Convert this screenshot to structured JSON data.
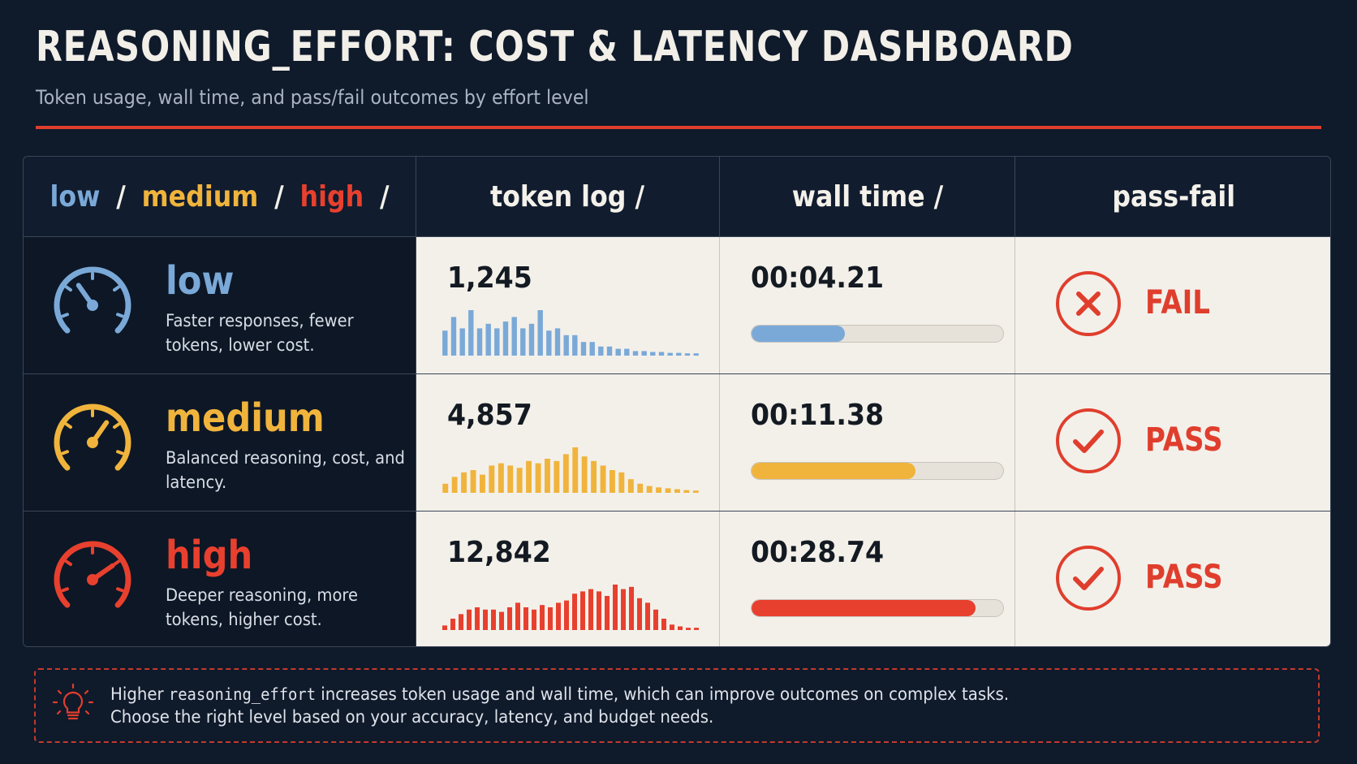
{
  "header": {
    "title": "REASONING_EFFORT: COST & LATENCY DASHBOARD",
    "subtitle": "Token usage, wall time, and pass/fail outcomes by effort level"
  },
  "columns": {
    "effort": {
      "low": "low",
      "sep": "/",
      "medium": "medium",
      "high": "high"
    },
    "token_log": "token log /",
    "wall_time": "wall time /",
    "pass_fail": "pass-fail"
  },
  "colors": {
    "low": "#7aa9d8",
    "medium": "#f0b43c",
    "high": "#e8402e",
    "accent": "#e03e2d"
  },
  "rows": [
    {
      "level": "low",
      "description": "Faster responses, fewer tokens, lower cost.",
      "tokens": "1,245",
      "token_spark": [
        0.55,
        0.85,
        0.6,
        1.0,
        0.6,
        0.7,
        0.6,
        0.75,
        0.85,
        0.6,
        0.7,
        1.0,
        0.55,
        0.6,
        0.45,
        0.45,
        0.3,
        0.3,
        0.2,
        0.2,
        0.15,
        0.15,
        0.1,
        0.1,
        0.08,
        0.08,
        0.06,
        0.06,
        0.05,
        0.05
      ],
      "wall_time": "00:04.21",
      "wall_fraction": 0.37,
      "outcome": "FAIL",
      "outcome_icon": "x-circle-icon"
    },
    {
      "level": "medium",
      "description": "Balanced reasoning, cost, and latency.",
      "tokens": "4,857",
      "token_spark": [
        0.2,
        0.35,
        0.45,
        0.5,
        0.4,
        0.6,
        0.65,
        0.6,
        0.55,
        0.7,
        0.65,
        0.75,
        0.7,
        0.85,
        1.0,
        0.8,
        0.7,
        0.6,
        0.5,
        0.45,
        0.3,
        0.2,
        0.15,
        0.12,
        0.1,
        0.08,
        0.06,
        0.05
      ],
      "wall_time": "00:11.38",
      "wall_fraction": 0.65,
      "outcome": "PASS",
      "outcome_icon": "check-circle-icon"
    },
    {
      "level": "high",
      "description": "Deeper reasoning, more tokens, higher cost.",
      "tokens": "12,842",
      "token_spark": [
        0.1,
        0.25,
        0.35,
        0.45,
        0.5,
        0.45,
        0.45,
        0.4,
        0.5,
        0.6,
        0.5,
        0.45,
        0.55,
        0.5,
        0.6,
        0.65,
        0.8,
        0.85,
        0.9,
        0.85,
        0.75,
        1.0,
        0.9,
        0.95,
        0.7,
        0.6,
        0.45,
        0.25,
        0.12,
        0.08,
        0.05,
        0.05
      ],
      "wall_time": "00:28.74",
      "wall_fraction": 0.89,
      "outcome": "PASS",
      "outcome_icon": "check-circle-icon"
    }
  ],
  "note": {
    "icon": "lightbulb-icon",
    "line1_pre": "Higher ",
    "line1_code": "reasoning_effort",
    "line1_post": " increases token usage and wall time, which can improve outcomes on complex tasks.",
    "line2": "Choose the right level based on your accuracy, latency, and budget needs."
  }
}
